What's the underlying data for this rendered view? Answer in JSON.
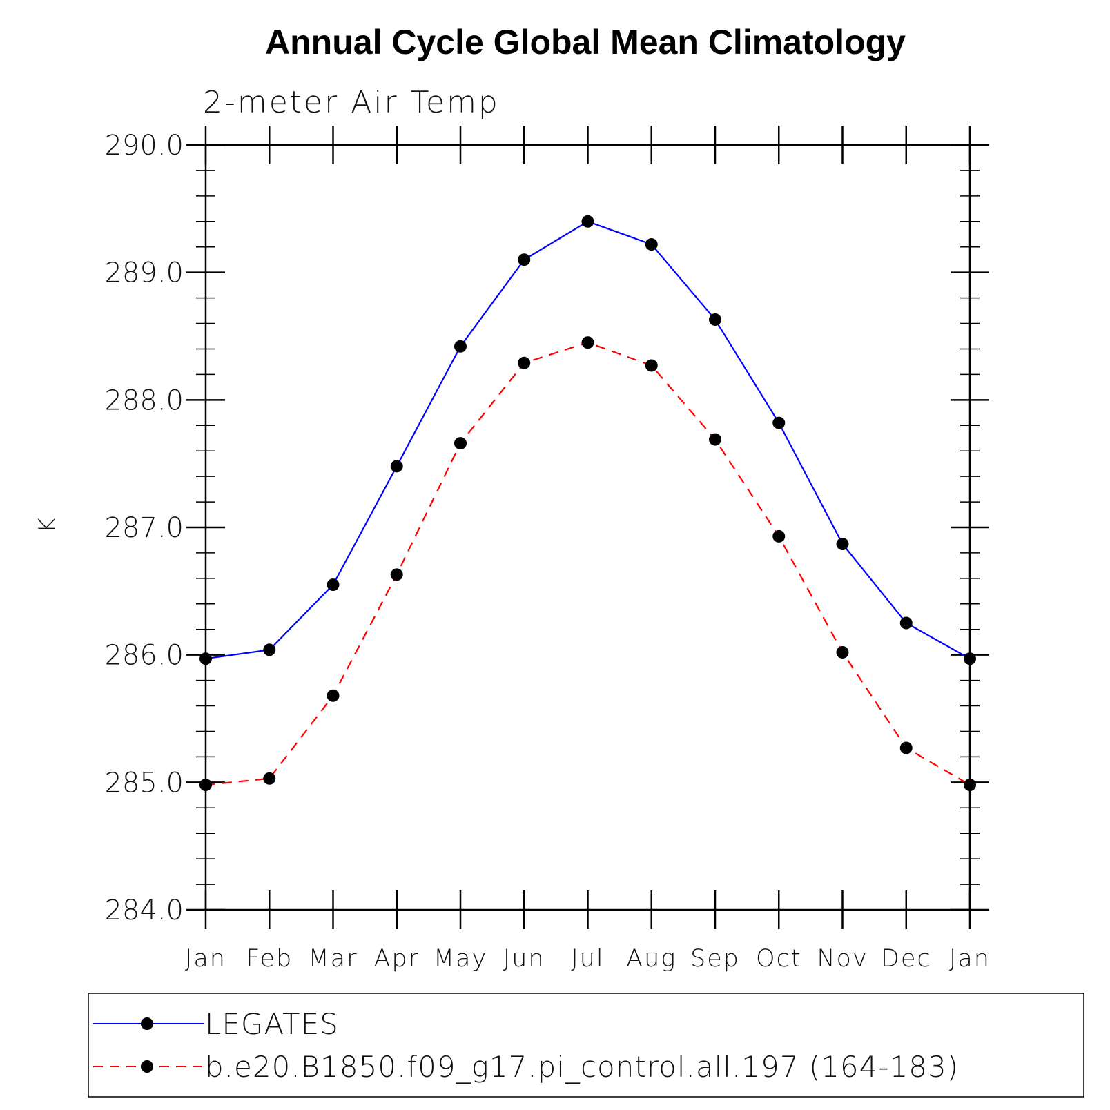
{
  "chart_data": {
    "type": "line",
    "title": "Annual Cycle Global Mean Climatology",
    "subtitle": "2-meter Air Temp",
    "xlabel": "",
    "ylabel": "K",
    "categories": [
      "Jan",
      "Feb",
      "Mar",
      "Apr",
      "May",
      "Jun",
      "Jul",
      "Aug",
      "Sep",
      "Oct",
      "Nov",
      "Dec",
      "Jan"
    ],
    "ylim": [
      284.0,
      290.0
    ],
    "yticks": [
      "284.0",
      "285.0",
      "286.0",
      "287.0",
      "288.0",
      "289.0",
      "290.0"
    ],
    "grid": false,
    "legend_position": "bottom",
    "series": [
      {
        "name": "LEGATES",
        "color": "#0000ff",
        "dash": "solid",
        "marker": "circle",
        "values": [
          285.97,
          286.04,
          286.55,
          287.48,
          288.42,
          289.1,
          289.4,
          289.22,
          288.63,
          287.82,
          286.87,
          286.25,
          285.97
        ]
      },
      {
        "name": "b.e20.B1850.f09_g17.pi_control.all.197 (164-183)",
        "color": "#ff0000",
        "dash": "dashed",
        "marker": "circle",
        "values": [
          284.98,
          285.03,
          285.68,
          286.63,
          287.66,
          288.29,
          288.45,
          288.27,
          287.69,
          286.93,
          286.02,
          285.27,
          284.98
        ]
      }
    ]
  }
}
